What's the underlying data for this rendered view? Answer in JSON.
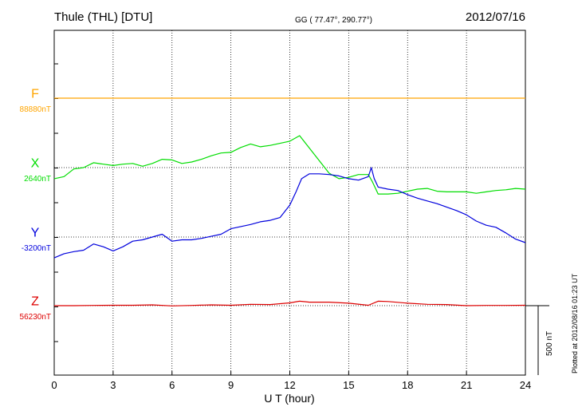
{
  "header": {
    "station": "Thule (THL)  [DTU]",
    "coords": "GG ( 77.47°, 290.77°)",
    "date": "2012/07/16"
  },
  "footer": {
    "plotted": "Plotted at 2012/08/16 01:23 UT",
    "scale": "500 nT"
  },
  "chart_data": {
    "type": "line",
    "xlabel": "U T (hour)",
    "xlim": [
      0,
      24
    ],
    "xticks": [
      "0",
      "3",
      "6",
      "9",
      "12",
      "15",
      "18",
      "21",
      "24"
    ],
    "grid": true,
    "series": [
      {
        "name": "F",
        "baseline_label": "88880nT",
        "color": "#ffa500",
        "x": [
          0,
          4,
          8,
          12,
          16,
          20,
          24
        ],
        "y": [
          88880,
          88880,
          88880,
          88880,
          88880,
          88880,
          88880
        ]
      },
      {
        "name": "X",
        "baseline_label": "2640nT",
        "color": "#00dd00",
        "x": [
          0,
          0.5,
          1,
          1.5,
          2,
          2.5,
          3,
          3.5,
          4,
          4.5,
          5,
          5.5,
          6,
          6.5,
          7,
          7.5,
          8,
          8.5,
          9,
          9.5,
          10,
          10.5,
          11,
          11.5,
          12,
          12.5,
          13,
          13.5,
          14,
          14.5,
          15,
          15.5,
          16,
          16.2,
          16.5,
          17,
          17.5,
          18,
          18.5,
          19,
          19.5,
          20,
          20.5,
          21,
          21.5,
          22,
          22.5,
          23,
          23.5,
          24
        ],
        "y": [
          2560,
          2575,
          2630,
          2640,
          2675,
          2665,
          2655,
          2665,
          2670,
          2650,
          2670,
          2700,
          2695,
          2670,
          2680,
          2700,
          2725,
          2745,
          2750,
          2785,
          2810,
          2790,
          2800,
          2815,
          2830,
          2870,
          2780,
          2690,
          2600,
          2560,
          2570,
          2590,
          2590,
          2540,
          2450,
          2450,
          2455,
          2470,
          2485,
          2490,
          2470,
          2465,
          2465,
          2465,
          2455,
          2465,
          2475,
          2480,
          2490,
          2485
        ]
      },
      {
        "name": "Y",
        "baseline_label": "-3200nT",
        "color": "#0000dd",
        "x": [
          0,
          0.5,
          1,
          1.5,
          2,
          2.5,
          3,
          3.5,
          4,
          4.5,
          5,
          5.5,
          6,
          6.5,
          7,
          7.5,
          8,
          8.5,
          9,
          9.5,
          10,
          10.5,
          11,
          11.5,
          12,
          12.3,
          12.6,
          13,
          13.5,
          14,
          14.5,
          15,
          15.5,
          16,
          16.15,
          16.3,
          16.5,
          17,
          17.5,
          18,
          18.5,
          19,
          19.5,
          20,
          20.5,
          21,
          21.5,
          22,
          22.5,
          23,
          23.5,
          24
        ],
        "y": [
          -3350,
          -3320,
          -3305,
          -3295,
          -3250,
          -3270,
          -3300,
          -3270,
          -3230,
          -3220,
          -3200,
          -3180,
          -3230,
          -3220,
          -3220,
          -3210,
          -3195,
          -3180,
          -3140,
          -3125,
          -3110,
          -3090,
          -3080,
          -3060,
          -2970,
          -2880,
          -2780,
          -2745,
          -2745,
          -2750,
          -2760,
          -2780,
          -2790,
          -2765,
          -2700,
          -2780,
          -2840,
          -2855,
          -2865,
          -2895,
          -2920,
          -2940,
          -2960,
          -2985,
          -3010,
          -3040,
          -3085,
          -3115,
          -3130,
          -3170,
          -3215,
          -3240
        ]
      },
      {
        "name": "Z",
        "baseline_label": "56230nT",
        "color": "#dd0000",
        "x": [
          0,
          1,
          2,
          3,
          4,
          5,
          6,
          7,
          8,
          9,
          10,
          11,
          12,
          12.5,
          13,
          14,
          15,
          16,
          16.5,
          17,
          18,
          19,
          20,
          21,
          22,
          23,
          24
        ],
        "y": [
          56230,
          56230,
          56232,
          56233,
          56233,
          56236,
          56228,
          56232,
          56236,
          56233,
          56240,
          56238,
          56250,
          56262,
          56255,
          56255,
          56248,
          56233,
          56262,
          56260,
          56248,
          56240,
          56238,
          56230,
          56232,
          56232,
          56233
        ]
      }
    ]
  }
}
